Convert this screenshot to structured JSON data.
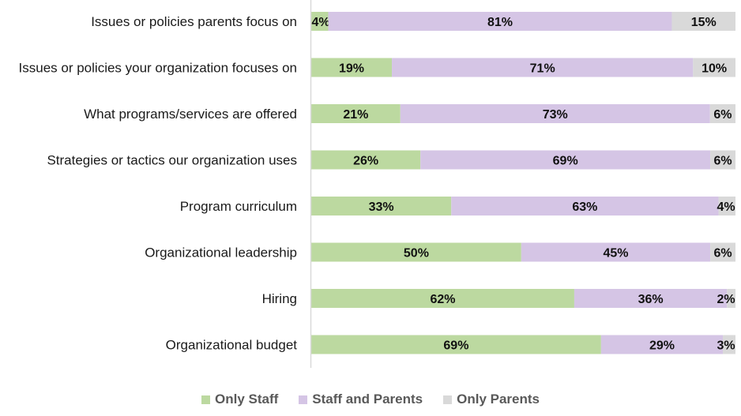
{
  "chart_data": {
    "type": "bar",
    "orientation": "horizontal",
    "stacked": "percent",
    "title": "",
    "xlabel": "",
    "ylabel": "",
    "xlim": [
      0,
      100
    ],
    "grid": false,
    "legend_position": "bottom",
    "categories": [
      "Issues or policies parents focus on",
      "Issues or policies your organization focuses on",
      "What programs/services are offered",
      "Strategies or tactics our organization uses",
      "Program curriculum",
      "Organizational leadership",
      "Hiring",
      "Organizational budget"
    ],
    "series": [
      {
        "name": "Only Staff",
        "color": "#bcd9a0",
        "values": [
          4,
          19,
          21,
          26,
          33,
          50,
          62,
          69
        ]
      },
      {
        "name": "Staff and Parents",
        "color": "#d5c5e5",
        "values": [
          81,
          71,
          73,
          69,
          63,
          45,
          36,
          29
        ]
      },
      {
        "name": "Only Parents",
        "color": "#d9d9d9",
        "values": [
          15,
          10,
          6,
          6,
          4,
          6,
          2,
          3
        ]
      }
    ],
    "value_label_suffix": "%"
  },
  "legend": {
    "items": [
      {
        "label": "Only Staff",
        "color": "#bcd9a0"
      },
      {
        "label": "Staff and Parents",
        "color": "#d5c5e5"
      },
      {
        "label": "Only Parents",
        "color": "#d9d9d9"
      }
    ]
  }
}
